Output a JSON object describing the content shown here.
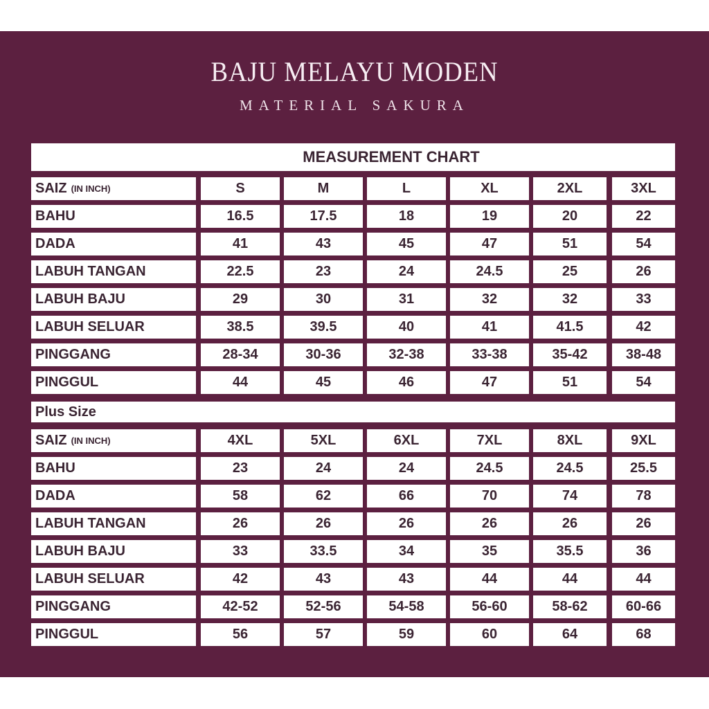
{
  "header": {
    "title": "BAJU MELAYU MODEN",
    "subtitle": "MATERIAL SAKURA"
  },
  "colors": {
    "background": "#5c2040",
    "cell": "#ffffff",
    "text": "#3a2432"
  },
  "chart_title": "MEASUREMENT CHART",
  "plus_label": "Plus Size",
  "tables": [
    {
      "size_label": "SAIZ",
      "unit_label": "(IN INCH)",
      "sizes": [
        "S",
        "M",
        "L",
        "XL",
        "2XL",
        "3XL"
      ],
      "rows": [
        {
          "label": "BAHU",
          "values": [
            "16.5",
            "17.5",
            "18",
            "19",
            "20",
            "22"
          ]
        },
        {
          "label": "DADA",
          "values": [
            "41",
            "43",
            "45",
            "47",
            "51",
            "54"
          ]
        },
        {
          "label": "LABUH TANGAN",
          "values": [
            "22.5",
            "23",
            "24",
            "24.5",
            "25",
            "26"
          ]
        },
        {
          "label": "LABUH BAJU",
          "values": [
            "29",
            "30",
            "31",
            "32",
            "32",
            "33"
          ]
        },
        {
          "label": "LABUH SELUAR",
          "values": [
            "38.5",
            "39.5",
            "40",
            "41",
            "41.5",
            "42"
          ]
        },
        {
          "label": "PINGGANG",
          "values": [
            "28-34",
            "30-36",
            "32-38",
            "33-38",
            "35-42",
            "38-48"
          ]
        },
        {
          "label": "PINGGUL",
          "values": [
            "44",
            "45",
            "46",
            "47",
            "51",
            "54"
          ]
        }
      ]
    },
    {
      "size_label": "SAIZ",
      "unit_label": "(IN INCH)",
      "sizes": [
        "4XL",
        "5XL",
        "6XL",
        "7XL",
        "8XL",
        "9XL"
      ],
      "rows": [
        {
          "label": "BAHU",
          "values": [
            "23",
            "24",
            "24",
            "24.5",
            "24.5",
            "25.5"
          ]
        },
        {
          "label": "DADA",
          "values": [
            "58",
            "62",
            "66",
            "70",
            "74",
            "78"
          ]
        },
        {
          "label": "LABUH TANGAN",
          "values": [
            "26",
            "26",
            "26",
            "26",
            "26",
            "26"
          ]
        },
        {
          "label": "LABUH BAJU",
          "values": [
            "33",
            "33.5",
            "34",
            "35",
            "35.5",
            "36"
          ]
        },
        {
          "label": "LABUH SELUAR",
          "values": [
            "42",
            "43",
            "43",
            "44",
            "44",
            "44"
          ]
        },
        {
          "label": "PINGGANG",
          "values": [
            "42-52",
            "52-56",
            "54-58",
            "56-60",
            "58-62",
            "60-66"
          ]
        },
        {
          "label": "PINGGUL",
          "values": [
            "56",
            "57",
            "59",
            "60",
            "64",
            "68"
          ]
        }
      ]
    }
  ]
}
